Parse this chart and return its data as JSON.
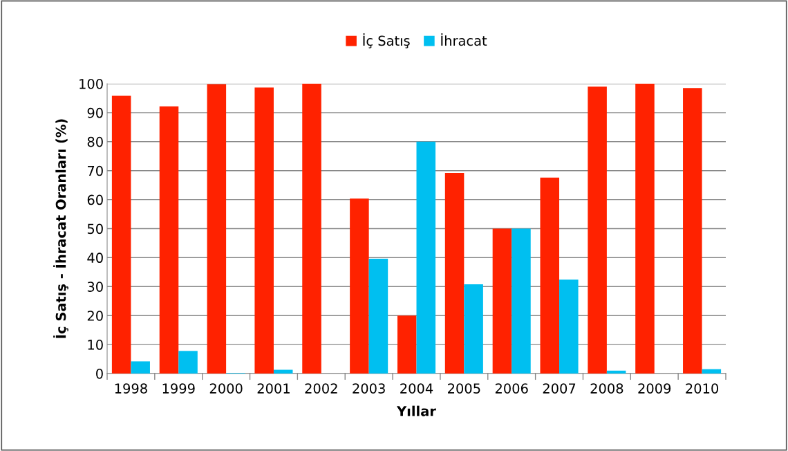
{
  "chart_data": {
    "type": "bar",
    "xlabel": "Yıllar",
    "ylabel": "İç Satış - İhracat Oranları (%)",
    "categories": [
      "1998",
      "1999",
      "2000",
      "2001",
      "2002",
      "2003",
      "2004",
      "2005",
      "2006",
      "2007",
      "2008",
      "2009",
      "2010"
    ],
    "series": [
      {
        "name": "İç Satış",
        "color": "#ff2200",
        "values": [
          95.8,
          92.2,
          99.8,
          98.7,
          100,
          60.4,
          20,
          69.2,
          50,
          67.6,
          99,
          100,
          98.5
        ]
      },
      {
        "name": "İhracat",
        "color": "#00bff0",
        "values": [
          4.2,
          7.8,
          0.2,
          1.3,
          0,
          39.6,
          80,
          30.8,
          50,
          32.4,
          1,
          0,
          1.5
        ]
      }
    ],
    "ylim": [
      0,
      100
    ],
    "yticks": [
      0,
      10,
      20,
      30,
      40,
      50,
      60,
      70,
      80,
      90,
      100
    ],
    "grid": "y",
    "legend": "top"
  }
}
